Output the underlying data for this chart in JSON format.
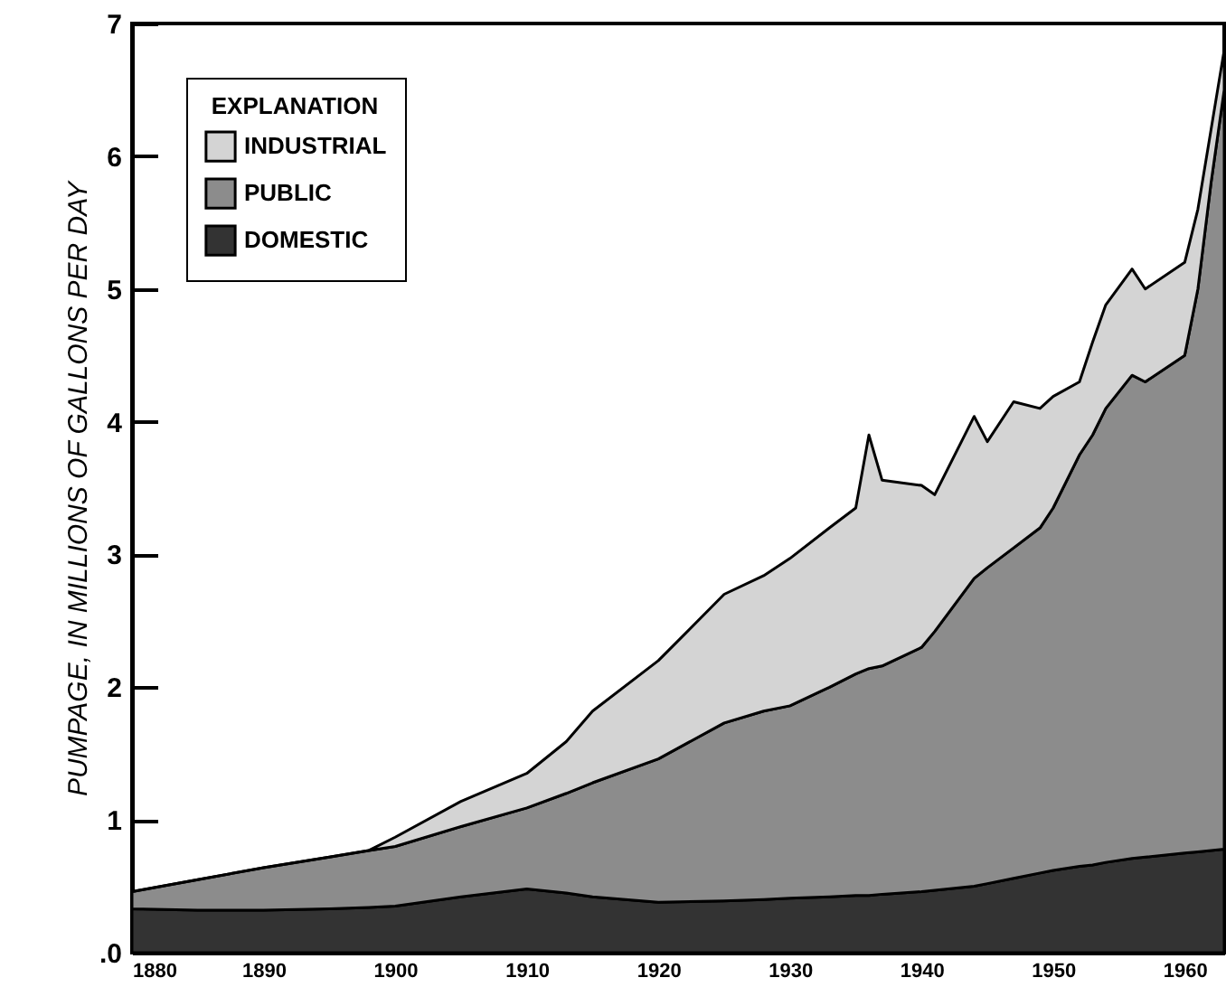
{
  "chart_data": {
    "type": "area",
    "stacked": true,
    "ylabel": "PUMPAGE, IN MILLIONS OF GALLONS PER DAY",
    "legend_title": "EXPLANATION",
    "legend": "top left",
    "grid": false,
    "x": [
      1880,
      1885,
      1890,
      1895,
      1898,
      1900,
      1905,
      1910,
      1913,
      1915,
      1920,
      1925,
      1928,
      1930,
      1933,
      1935,
      1936,
      1937,
      1940,
      1941,
      1944,
      1945,
      1947,
      1949,
      1950,
      1952,
      1953,
      1954,
      1956,
      1957,
      1960,
      1961,
      1962,
      1963
    ],
    "xlim": [
      1880,
      1963
    ],
    "xticks": [
      1880,
      1890,
      1900,
      1910,
      1920,
      1930,
      1940,
      1950,
      1960
    ],
    "ylim": [
      0,
      7
    ],
    "yticks": [
      {
        "value": 0,
        "label": ".0"
      },
      1,
      2,
      3,
      4,
      5,
      6,
      7
    ],
    "series": [
      {
        "name": "DOMESTIC",
        "color": "#333333",
        "values": [
          0.33,
          0.32,
          0.32,
          0.33,
          0.34,
          0.35,
          0.42,
          0.48,
          0.45,
          0.42,
          0.38,
          0.39,
          0.4,
          0.41,
          0.42,
          0.43,
          0.43,
          0.44,
          0.46,
          0.47,
          0.5,
          0.52,
          0.56,
          0.6,
          0.62,
          0.65,
          0.66,
          0.68,
          0.71,
          0.72,
          0.75,
          0.76,
          0.77,
          0.78
        ]
      },
      {
        "name": "PUBLIC",
        "color": "#8c8c8c",
        "values": [
          0.13,
          0.23,
          0.32,
          0.39,
          0.43,
          0.45,
          0.53,
          0.61,
          0.75,
          0.86,
          1.08,
          1.34,
          1.42,
          1.45,
          1.58,
          1.67,
          1.71,
          1.72,
          1.84,
          1.95,
          2.32,
          2.38,
          2.49,
          2.6,
          2.73,
          3.1,
          3.24,
          3.42,
          3.64,
          3.58,
          3.75,
          4.24,
          5.03,
          5.72
        ]
      },
      {
        "name": "INDUSTRIAL",
        "color": "#d4d4d4",
        "values": [
          0,
          0,
          0,
          0,
          0,
          0.07,
          0.19,
          0.26,
          0.39,
          0.54,
          0.74,
          0.97,
          1.02,
          1.11,
          1.2,
          1.25,
          1.76,
          1.4,
          1.22,
          1.03,
          1.22,
          0.95,
          1.1,
          0.9,
          0.84,
          0.55,
          0.7,
          0.78,
          0.8,
          0.7,
          0.7,
          0.6,
          0.4,
          0.3
        ]
      }
    ]
  }
}
